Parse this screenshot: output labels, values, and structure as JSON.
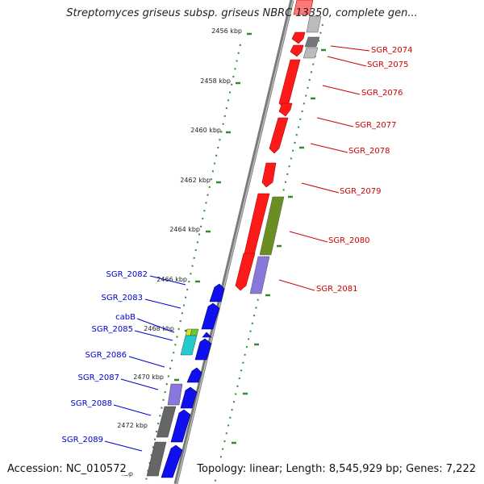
{
  "title": "Streptomyces griseus subsp. griseus NBRC 13350, complete gen...",
  "accession": "Accession: NC_010572",
  "topology": "Topology: linear; Length: 8,545,929 bp; Genes: 7,222",
  "colors": {
    "backbone": "#8a8a8a",
    "tick": "#2e8b2e",
    "forward_genes": "#ff0000",
    "reverse_genes": "#0000ee",
    "right_labels": "#cc0000",
    "left_labels": "#0000cc"
  },
  "kbp_ticks": [
    {
      "label": "2456 kbp"
    },
    {
      "label": "2458 kbp"
    },
    {
      "label": "2460 kbp"
    },
    {
      "label": "2462 kbp"
    },
    {
      "label": "2464 kbp"
    },
    {
      "label": "2466 kbp"
    },
    {
      "label": "2468 kbp"
    },
    {
      "label": "2470 kbp"
    },
    {
      "label": "2472 kbp"
    },
    {
      "label": "kbp"
    }
  ],
  "right_gene_labels": [
    "SGR_2074",
    "SGR_2075",
    "SGR_2076",
    "SGR_2077",
    "SGR_2078",
    "SGR_2079",
    "SGR_2080",
    "SGR_2081"
  ],
  "left_gene_labels": [
    "SGR_2082",
    "SGR_2083",
    "cabB",
    "SGR_2085",
    "SGR_2086",
    "SGR_2087",
    "SGR_2088",
    "SGR_2089"
  ]
}
